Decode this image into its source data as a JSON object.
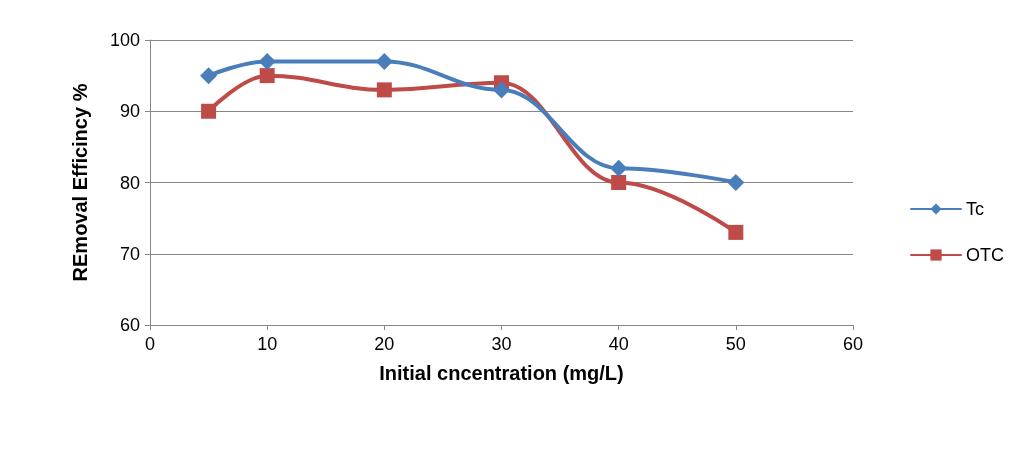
{
  "chart_data": {
    "type": "line",
    "xlabel": "Initial cncentration (mg/L)",
    "ylabel": "REmoval Efficincy %",
    "x": [
      5,
      10,
      20,
      30,
      40,
      50
    ],
    "series": [
      {
        "name": "Tc",
        "color": "#4a7ebb",
        "marker": "diamond",
        "values": [
          95,
          97,
          97,
          93,
          82,
          80
        ]
      },
      {
        "name": "OTC",
        "color": "#be4b48",
        "marker": "square",
        "values": [
          90,
          95,
          93,
          94,
          80,
          73
        ]
      }
    ],
    "xlim": [
      0,
      60
    ],
    "xticks": [
      0,
      10,
      20,
      30,
      40,
      50,
      60
    ],
    "ylim": [
      60,
      100
    ],
    "yticks": [
      60,
      70,
      80,
      90,
      100
    ],
    "grid": "y",
    "legend": "right"
  }
}
